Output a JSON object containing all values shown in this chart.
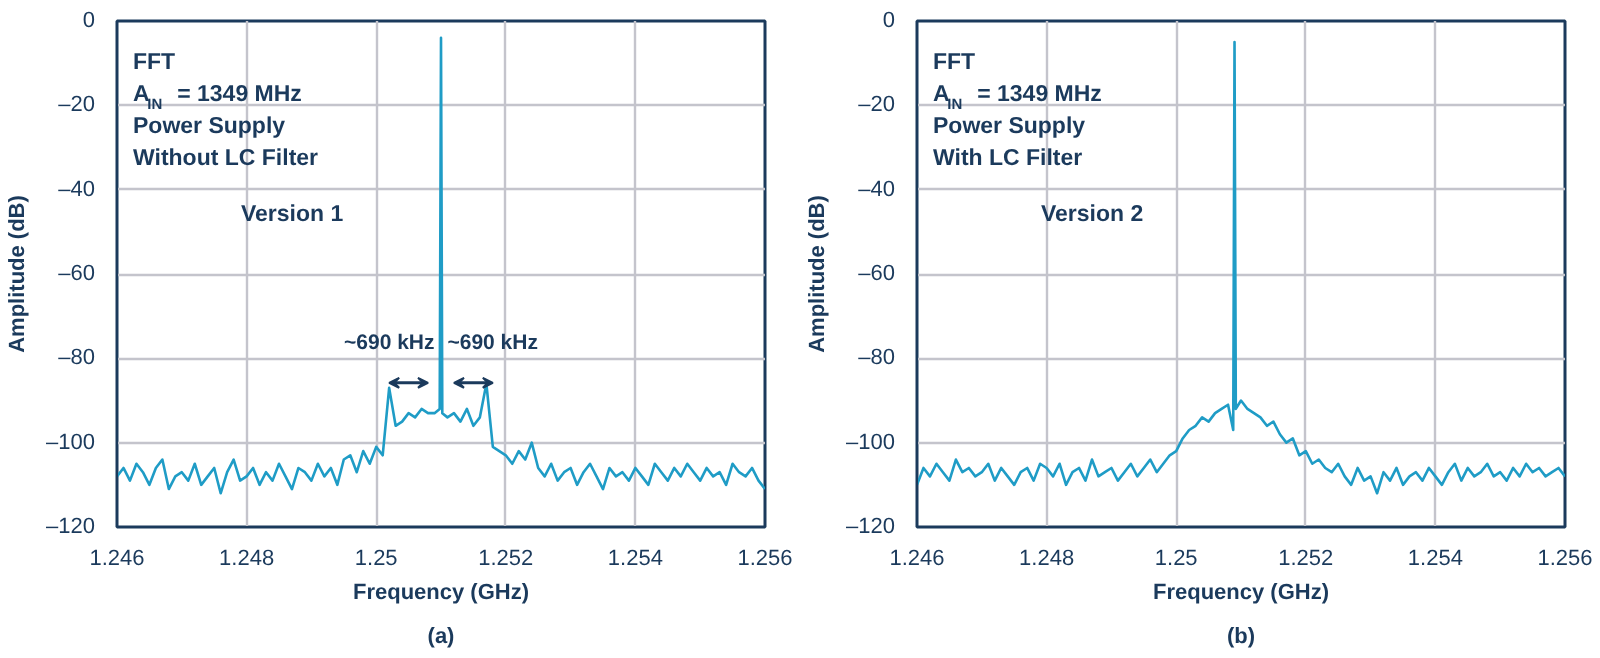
{
  "chart_data": [
    {
      "type": "line",
      "xlabel": "Frequency (GHz)",
      "ylabel": "Amplitude (dB)",
      "annotations": [
        "FFT",
        "A$_{IN}$ = 1349 MHz",
        "Power Supply",
        "Without LC Filter",
        "Version 1",
        "~690 kHz",
        "~690 kHz",
        "(a)"
      ],
      "x": [
        1.246,
        1.2461,
        1.2462,
        1.2463,
        1.2464,
        1.2465,
        1.2466,
        1.2467,
        1.2468,
        1.2469,
        1.247,
        1.2471,
        1.2472,
        1.2473,
        1.2474,
        1.2475,
        1.2476,
        1.2477,
        1.2478,
        1.2479,
        1.248,
        1.2481,
        1.2482,
        1.2483,
        1.2484,
        1.2485,
        1.2486,
        1.2487,
        1.2488,
        1.2489,
        1.249,
        1.2491,
        1.2492,
        1.2493,
        1.2494,
        1.2495,
        1.2496,
        1.2497,
        1.2498,
        1.2499,
        1.25,
        1.2501,
        1.2502,
        1.2503,
        1.2504,
        1.2505,
        1.2506,
        1.2507,
        1.2508,
        1.2509,
        1.25098,
        1.251,
        1.25102,
        1.2511,
        1.2512,
        1.2513,
        1.2514,
        1.2515,
        1.2516,
        1.2517,
        1.2518,
        1.2519,
        1.252,
        1.2521,
        1.2522,
        1.2523,
        1.2524,
        1.2525,
        1.2526,
        1.2527,
        1.2528,
        1.2529,
        1.253,
        1.2531,
        1.2532,
        1.2533,
        1.2534,
        1.2535,
        1.2536,
        1.2537,
        1.2538,
        1.2539,
        1.254,
        1.2541,
        1.2542,
        1.2543,
        1.2544,
        1.2545,
        1.2546,
        1.2547,
        1.2548,
        1.2549,
        1.255,
        1.2551,
        1.2552,
        1.2553,
        1.2554,
        1.2555,
        1.2556,
        1.2557,
        1.2558,
        1.2559,
        1.256
      ],
      "series": [
        {
          "color": "#1f9cc6",
          "values": [
            -108,
            -106,
            -109,
            -105,
            -107,
            -110,
            -106,
            -104,
            -111,
            -108,
            -107,
            -109,
            -105,
            -110,
            -108,
            -106,
            -112,
            -107,
            -104,
            -109,
            -108,
            -106,
            -110,
            -107,
            -109,
            -105,
            -108,
            -111,
            -106,
            -107,
            -109,
            -105,
            -108,
            -106,
            -110,
            -104,
            -103,
            -107,
            -102,
            -105,
            -101,
            -103,
            -87,
            -96,
            -95,
            -93,
            -94,
            -92,
            -93,
            -93,
            -92,
            -4,
            -93,
            -94,
            -93,
            -95,
            -92,
            -96,
            -94,
            -86,
            -101,
            -102,
            -103,
            -105,
            -102,
            -104,
            -100,
            -106,
            -108,
            -105,
            -109,
            -107,
            -106,
            -110,
            -107,
            -105,
            -108,
            -111,
            -106,
            -108,
            -107,
            -109,
            -106,
            -108,
            -110,
            -105,
            -107,
            -109,
            -106,
            -108,
            -105,
            -107,
            -109,
            -106,
            -108,
            -107,
            -110,
            -105,
            -107,
            -108,
            -106,
            -109,
            -111
          ]
        }
      ],
      "xlim": [
        1.246,
        1.256
      ],
      "xticks": [
        1.246,
        1.248,
        1.25,
        1.252,
        1.254,
        1.256
      ],
      "ylim": [
        -120,
        0
      ],
      "yticks": [
        {
          "value": 0,
          "label": "0"
        },
        {
          "value": -20,
          "label": "–20"
        },
        {
          "value": -40,
          "label": "–40"
        },
        {
          "value": -60,
          "label": "–60"
        },
        {
          "value": -80,
          "label": "–80"
        },
        {
          "value": -100,
          "label": "–100"
        },
        {
          "value": -120,
          "label": "–120"
        }
      ],
      "grid": true,
      "marker": "none",
      "line_style": "solid"
    },
    {
      "type": "line",
      "xlabel": "Frequency (GHz)",
      "ylabel": "Amplitude (dB)",
      "annotations": [
        "FFT",
        "A$_{IN}$ = 1349 MHz",
        "Power Supply",
        "With LC Filter",
        "Version 2",
        "(b)"
      ],
      "x": [
        1.246,
        1.2461,
        1.2462,
        1.2463,
        1.2464,
        1.2465,
        1.2466,
        1.2467,
        1.2468,
        1.2469,
        1.247,
        1.2471,
        1.2472,
        1.2473,
        1.2474,
        1.2475,
        1.2476,
        1.2477,
        1.2478,
        1.2479,
        1.248,
        1.2481,
        1.2482,
        1.2483,
        1.2484,
        1.2485,
        1.2486,
        1.2487,
        1.2488,
        1.2489,
        1.249,
        1.2491,
        1.2492,
        1.2493,
        1.2494,
        1.2495,
        1.2496,
        1.2497,
        1.2498,
        1.2499,
        1.25,
        1.2501,
        1.2502,
        1.2503,
        1.2504,
        1.2505,
        1.2506,
        1.2507,
        1.2508,
        1.25088,
        1.2509,
        1.25092,
        1.251,
        1.2511,
        1.2512,
        1.2513,
        1.2514,
        1.2515,
        1.2516,
        1.2517,
        1.2518,
        1.2519,
        1.252,
        1.2521,
        1.2522,
        1.2523,
        1.2524,
        1.2525,
        1.2526,
        1.2527,
        1.2528,
        1.2529,
        1.253,
        1.2531,
        1.2532,
        1.2533,
        1.2534,
        1.2535,
        1.2536,
        1.2537,
        1.2538,
        1.2539,
        1.254,
        1.2541,
        1.2542,
        1.2543,
        1.2544,
        1.2545,
        1.2546,
        1.2547,
        1.2548,
        1.2549,
        1.255,
        1.2551,
        1.2552,
        1.2553,
        1.2554,
        1.2555,
        1.2556,
        1.2557,
        1.2558,
        1.2559,
        1.256
      ],
      "series": [
        {
          "color": "#1f9cc6",
          "values": [
            -110,
            -106,
            -108,
            -105,
            -107,
            -109,
            -104,
            -107,
            -106,
            -108,
            -107,
            -105,
            -109,
            -106,
            -108,
            -110,
            -107,
            -106,
            -109,
            -105,
            -106,
            -108,
            -105,
            -110,
            -107,
            -106,
            -109,
            -104,
            -108,
            -107,
            -106,
            -109,
            -107,
            -105,
            -108,
            -106,
            -104,
            -107,
            -105,
            -103,
            -102,
            -99,
            -97,
            -96,
            -94,
            -95,
            -93,
            -92,
            -91,
            -97,
            -5,
            -92,
            -90,
            -92,
            -93,
            -94,
            -96,
            -95,
            -98,
            -100,
            -99,
            -103,
            -102,
            -105,
            -104,
            -106,
            -107,
            -105,
            -108,
            -110,
            -106,
            -109,
            -108,
            -112,
            -107,
            -109,
            -106,
            -110,
            -108,
            -107,
            -109,
            -106,
            -108,
            -110,
            -107,
            -105,
            -109,
            -106,
            -108,
            -107,
            -105,
            -108,
            -107,
            -109,
            -106,
            -108,
            -105,
            -107,
            -106,
            -108,
            -107,
            -106,
            -108
          ]
        }
      ],
      "xlim": [
        1.246,
        1.256
      ],
      "xticks": [
        1.246,
        1.248,
        1.25,
        1.252,
        1.254,
        1.256
      ],
      "ylim": [
        -120,
        0
      ],
      "yticks": [
        {
          "value": 0,
          "label": "0"
        },
        {
          "value": -20,
          "label": "–20"
        },
        {
          "value": -40,
          "label": "–40"
        },
        {
          "value": -60,
          "label": "–60"
        },
        {
          "value": -80,
          "label": "–80"
        },
        {
          "value": -100,
          "label": "–100"
        },
        {
          "value": -120,
          "label": "–120"
        }
      ],
      "grid": true,
      "marker": "none",
      "line_style": "solid"
    }
  ]
}
